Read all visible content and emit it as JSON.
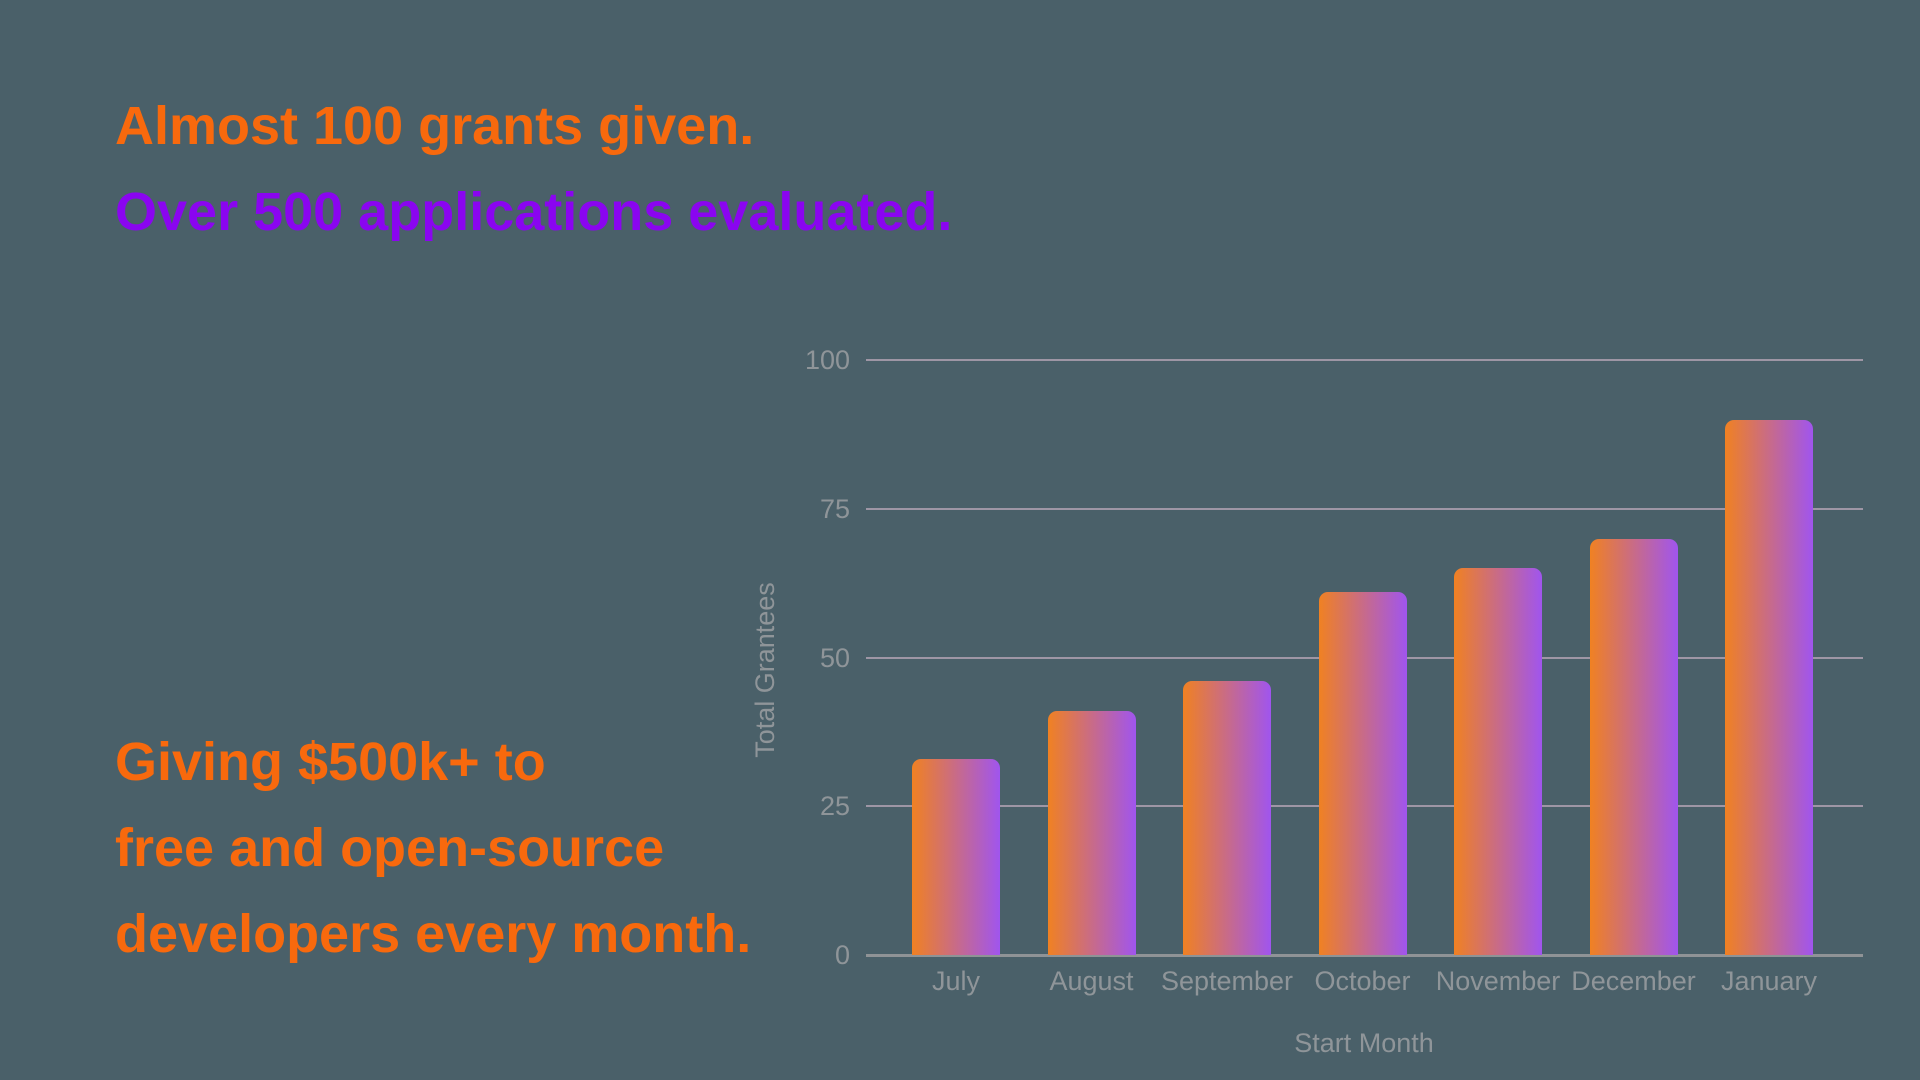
{
  "background_color": "#4a6069",
  "headline": {
    "line1": {
      "text": "Almost 100 grants given.",
      "color": "#f8690d"
    },
    "line2": {
      "text": "Over 500 applications evaluated.",
      "color": "#8a05f0"
    }
  },
  "subheadline": {
    "color": "#f8690d",
    "lines": {
      "0": "Giving $500k+ to",
      "1": "free and open-source",
      "2": "developers every month."
    }
  },
  "chart_data": {
    "type": "bar",
    "categories": [
      "July",
      "August",
      "September",
      "October",
      "November",
      "December",
      "January"
    ],
    "values": [
      33,
      41,
      46,
      61,
      65,
      70,
      90
    ],
    "title": "",
    "xlabel": "Start Month",
    "ylabel": "Total Grantees",
    "yticks": [
      0,
      25,
      50,
      75,
      100
    ],
    "ylim": [
      0,
      100
    ],
    "grid": true,
    "legend": "none",
    "bar_gradient_left": "#f08122",
    "bar_gradient_right": "#a055ee",
    "gridline_color": "#9e96a5",
    "axis_line_color": "#8f9396",
    "tick_label_color": "#8f9599"
  }
}
